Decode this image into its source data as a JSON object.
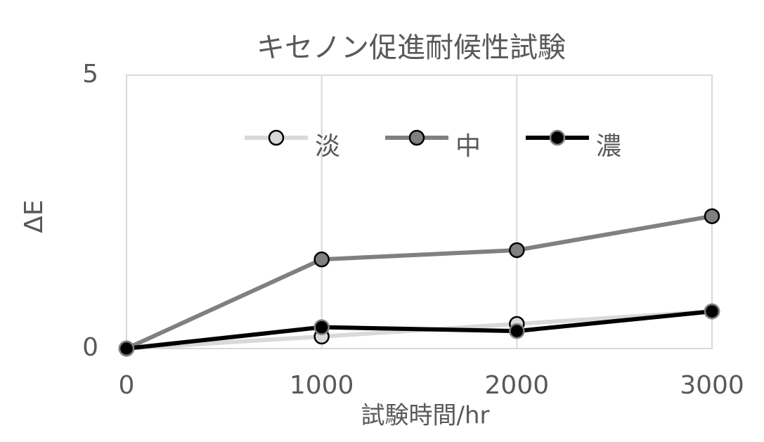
{
  "chart_data": {
    "type": "line",
    "title": "キセノン促進耐候性試験",
    "x_label": "試験時間/hr",
    "y_label": "ΔE",
    "x": [
      0,
      1000,
      2000,
      3000
    ],
    "xlim": [
      0,
      3000
    ],
    "xticks": [
      0,
      1000,
      2000,
      3000
    ],
    "ylim": [
      0,
      5
    ],
    "yticks": [
      0,
      5
    ],
    "grid": true,
    "legend": "top",
    "series": [
      {
        "name": "淡",
        "color": "#d9d9d9",
        "values": [
          0,
          0.22,
          0.45,
          0.68
        ]
      },
      {
        "name": "中",
        "color": "#808080",
        "values": [
          0,
          1.63,
          1.8,
          2.42
        ]
      },
      {
        "name": "濃",
        "color": "#000000",
        "values": [
          0,
          0.39,
          0.32,
          0.68
        ]
      }
    ]
  }
}
